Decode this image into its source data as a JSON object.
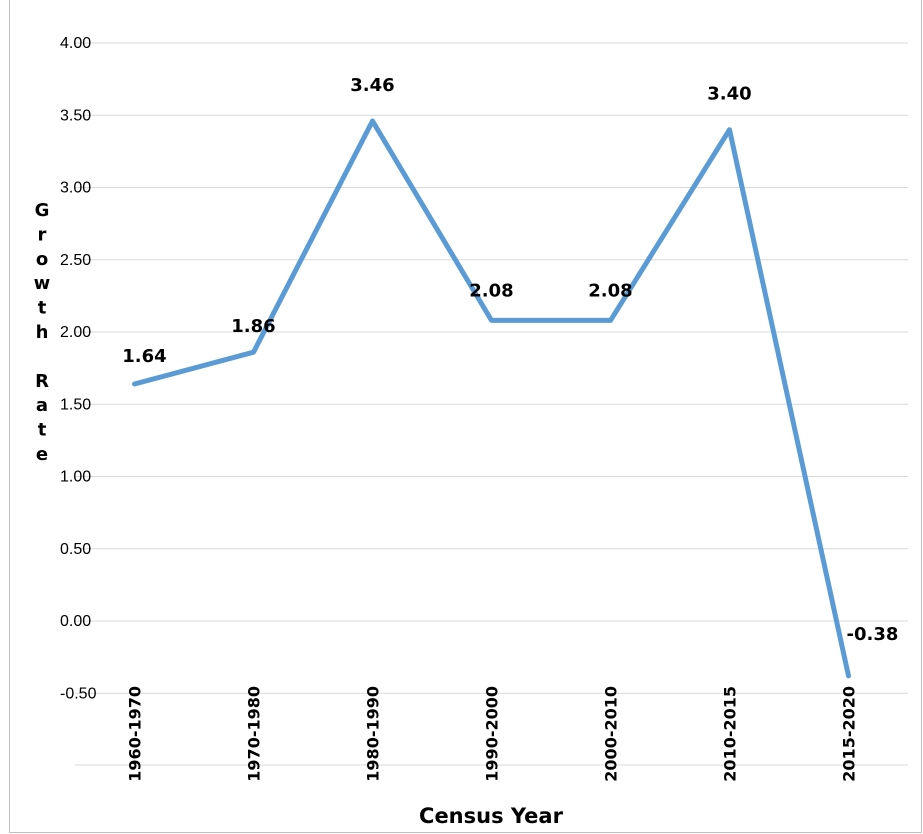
{
  "chart_data": {
    "type": "line",
    "title": "",
    "xlabel": "Census Year",
    "ylabel": "Growth Rate",
    "categories": [
      "1960-1970",
      "1970-1980",
      "1980-1990",
      "1990-2000",
      "2000-2010",
      "2010-2015",
      "2015-2020"
    ],
    "series": [
      {
        "values": [
          1.64,
          1.86,
          3.46,
          2.08,
          2.08,
          3.4,
          -0.38
        ],
        "color": "#5b9bd5"
      }
    ],
    "data_labels": [
      "1.64",
      "1.86",
      "3.46",
      "2.08",
      "2.08",
      "3.40",
      "-0.38"
    ],
    "ylim": [
      -0.5,
      4.0
    ],
    "yticks": [
      -0.5,
      0.0,
      0.5,
      1.0,
      1.5,
      2.0,
      2.5,
      3.0,
      3.5,
      4.0
    ],
    "ytick_labels": [
      "-0.50",
      "0.00",
      "0.50",
      "1.00",
      "1.50",
      "2.00",
      "2.50",
      "3.00",
      "3.50",
      "4.00"
    ],
    "grid": true,
    "grid_color": "#d9d9d9",
    "legend": "none"
  }
}
